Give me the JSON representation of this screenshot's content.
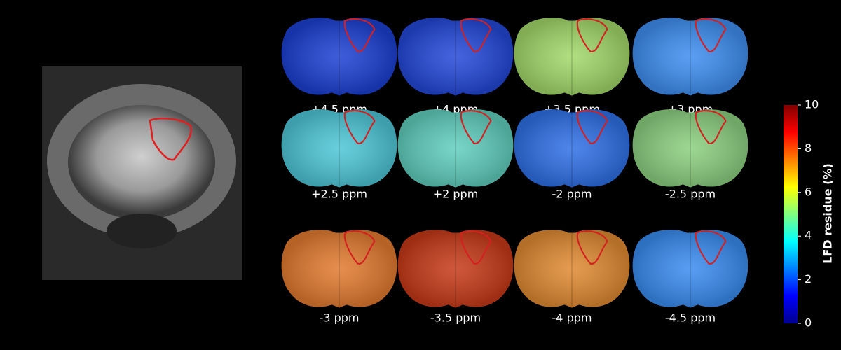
{
  "panels": [
    {
      "label": "+4.5 ppm",
      "color": "#1c40d2"
    },
    {
      "label": "+4 ppm",
      "color": "#2448d8"
    },
    {
      "label": "+3.5 ppm",
      "color": "#a2d86a"
    },
    {
      "label": "+3 ppm",
      "color": "#3e8ef0"
    },
    {
      "label": "+2.5 ppm",
      "color": "#4ec6d6"
    },
    {
      "label": "+2 ppm",
      "color": "#60cebe"
    },
    {
      "label": "-2 ppm",
      "color": "#3070e6"
    },
    {
      "label": "-2.5 ppm",
      "color": "#8ccf80"
    },
    {
      "label": "-3 ppm",
      "color": "#e27a30"
    },
    {
      "label": "-3.5 ppm",
      "color": "#c63a18"
    },
    {
      "label": "-4 ppm",
      "color": "#e08a32"
    },
    {
      "label": "-4.5 ppm",
      "color": "#3a8cf0"
    }
  ],
  "colorbar": {
    "label": "LFD residue (%)",
    "lim": [
      0,
      10
    ],
    "ticks": [
      0,
      2,
      4,
      6,
      8,
      10
    ]
  }
}
